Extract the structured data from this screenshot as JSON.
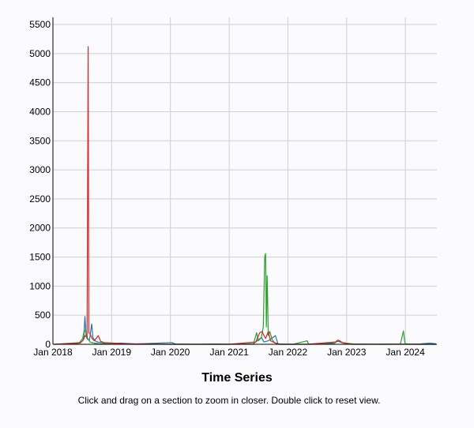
{
  "chart_data": {
    "type": "line",
    "title": "Time Series",
    "caption": "Click and drag on a section to zoom in closer. Double click to reset view.",
    "xlabel": "",
    "ylabel": "",
    "xlim": [
      "2018-01-01",
      "2024-07-15"
    ],
    "ylim": [
      0,
      5500
    ],
    "x_ticks": [
      "Jan 2018",
      "Jan 2019",
      "Jan 2020",
      "Jan 2021",
      "Jan 2022",
      "Jan 2023",
      "Jan 2024"
    ],
    "x_tick_dates": [
      "2018-01-01",
      "2019-01-01",
      "2020-01-01",
      "2021-01-01",
      "2022-01-01",
      "2023-01-01",
      "2024-01-01"
    ],
    "y_ticks": [
      0,
      500,
      1000,
      1500,
      2000,
      2500,
      3000,
      3500,
      4000,
      4500,
      5000,
      5500
    ],
    "grid": true,
    "series": [
      {
        "color": "#1f77b4",
        "points": [
          [
            "2018-01-10",
            0
          ],
          [
            "2018-06-01",
            15
          ],
          [
            "2018-06-20",
            30
          ],
          [
            "2018-07-05",
            60
          ],
          [
            "2018-07-12",
            120
          ],
          [
            "2018-07-19",
            480
          ],
          [
            "2018-07-26",
            160
          ],
          [
            "2018-08-02",
            90
          ],
          [
            "2018-08-16",
            70
          ],
          [
            "2018-08-30",
            350
          ],
          [
            "2018-09-06",
            120
          ],
          [
            "2018-09-20",
            60
          ],
          [
            "2018-10-05",
            40
          ],
          [
            "2018-11-01",
            30
          ],
          [
            "2018-12-01",
            10
          ],
          [
            "2019-03-01",
            20
          ],
          [
            "2019-06-01",
            5
          ],
          [
            "2019-09-01",
            15
          ],
          [
            "2020-01-10",
            30
          ],
          [
            "2020-02-01",
            5
          ],
          [
            "2020-06-01",
            0
          ],
          [
            "2020-10-01",
            5
          ],
          [
            "2021-03-01",
            0
          ],
          [
            "2021-06-01",
            10
          ],
          [
            "2021-07-20",
            120
          ],
          [
            "2021-08-05",
            40
          ],
          [
            "2021-09-01",
            60
          ],
          [
            "2021-10-15",
            150
          ],
          [
            "2021-11-01",
            0
          ],
          [
            "2022-05-01",
            0
          ],
          [
            "2022-10-05",
            20
          ],
          [
            "2022-10-20",
            40
          ],
          [
            "2022-11-10",
            50
          ],
          [
            "2022-12-01",
            30
          ],
          [
            "2023-02-01",
            5
          ],
          [
            "2023-08-01",
            0
          ],
          [
            "2024-04-01",
            5
          ],
          [
            "2024-06-01",
            20
          ],
          [
            "2024-07-10",
            10
          ]
        ]
      },
      {
        "color": "#2ca02c",
        "points": [
          [
            "2018-01-10",
            0
          ],
          [
            "2018-06-15",
            30
          ],
          [
            "2018-07-05",
            100
          ],
          [
            "2018-07-15",
            250
          ],
          [
            "2018-07-25",
            200
          ],
          [
            "2018-08-05",
            100
          ],
          [
            "2018-08-20",
            40
          ],
          [
            "2018-09-15",
            20
          ],
          [
            "2018-10-15",
            10
          ],
          [
            "2019-01-01",
            5
          ],
          [
            "2019-06-01",
            0
          ],
          [
            "2021-01-01",
            0
          ],
          [
            "2021-06-01",
            10
          ],
          [
            "2021-06-20",
            200
          ],
          [
            "2021-07-01",
            60
          ],
          [
            "2021-07-20",
            120
          ],
          [
            "2021-08-01",
            300
          ],
          [
            "2021-08-10",
            1500
          ],
          [
            "2021-08-15",
            1560
          ],
          [
            "2021-08-20",
            300
          ],
          [
            "2021-08-25",
            1180
          ],
          [
            "2021-09-01",
            150
          ],
          [
            "2021-09-10",
            220
          ],
          [
            "2021-09-25",
            80
          ],
          [
            "2021-10-10",
            30
          ],
          [
            "2021-11-01",
            5
          ],
          [
            "2022-02-01",
            0
          ],
          [
            "2022-05-01",
            60
          ],
          [
            "2022-05-10",
            0
          ],
          [
            "2022-10-15",
            10
          ],
          [
            "2022-11-10",
            70
          ],
          [
            "2022-12-01",
            30
          ],
          [
            "2023-03-01",
            0
          ],
          [
            "2023-12-01",
            5
          ],
          [
            "2023-12-20",
            230
          ],
          [
            "2023-12-30",
            10
          ],
          [
            "2024-03-01",
            0
          ],
          [
            "2024-07-10",
            0
          ]
        ]
      },
      {
        "color": "#d62728",
        "points": [
          [
            "2018-01-10",
            0
          ],
          [
            "2018-06-20",
            20
          ],
          [
            "2018-07-10",
            80
          ],
          [
            "2018-07-20",
            150
          ],
          [
            "2018-08-01",
            120
          ],
          [
            "2018-08-08",
            5120
          ],
          [
            "2018-08-12",
            200
          ],
          [
            "2018-08-20",
            180
          ],
          [
            "2018-09-01",
            100
          ],
          [
            "2018-09-15",
            60
          ],
          [
            "2018-10-10",
            150
          ],
          [
            "2018-10-25",
            50
          ],
          [
            "2018-11-15",
            30
          ],
          [
            "2019-01-15",
            20
          ],
          [
            "2019-04-01",
            10
          ],
          [
            "2019-08-01",
            5
          ],
          [
            "2020-01-01",
            0
          ],
          [
            "2021-01-01",
            0
          ],
          [
            "2021-06-15",
            40
          ],
          [
            "2021-07-10",
            200
          ],
          [
            "2021-07-25",
            220
          ],
          [
            "2021-08-05",
            150
          ],
          [
            "2021-08-15",
            100
          ],
          [
            "2021-09-01",
            220
          ],
          [
            "2021-09-15",
            60
          ],
          [
            "2021-10-15",
            20
          ],
          [
            "2021-11-15",
            0
          ],
          [
            "2022-05-01",
            0
          ],
          [
            "2022-10-25",
            40
          ],
          [
            "2022-11-05",
            70
          ],
          [
            "2022-11-20",
            60
          ],
          [
            "2022-12-10",
            20
          ],
          [
            "2023-02-01",
            0
          ],
          [
            "2024-07-10",
            0
          ]
        ]
      }
    ]
  }
}
